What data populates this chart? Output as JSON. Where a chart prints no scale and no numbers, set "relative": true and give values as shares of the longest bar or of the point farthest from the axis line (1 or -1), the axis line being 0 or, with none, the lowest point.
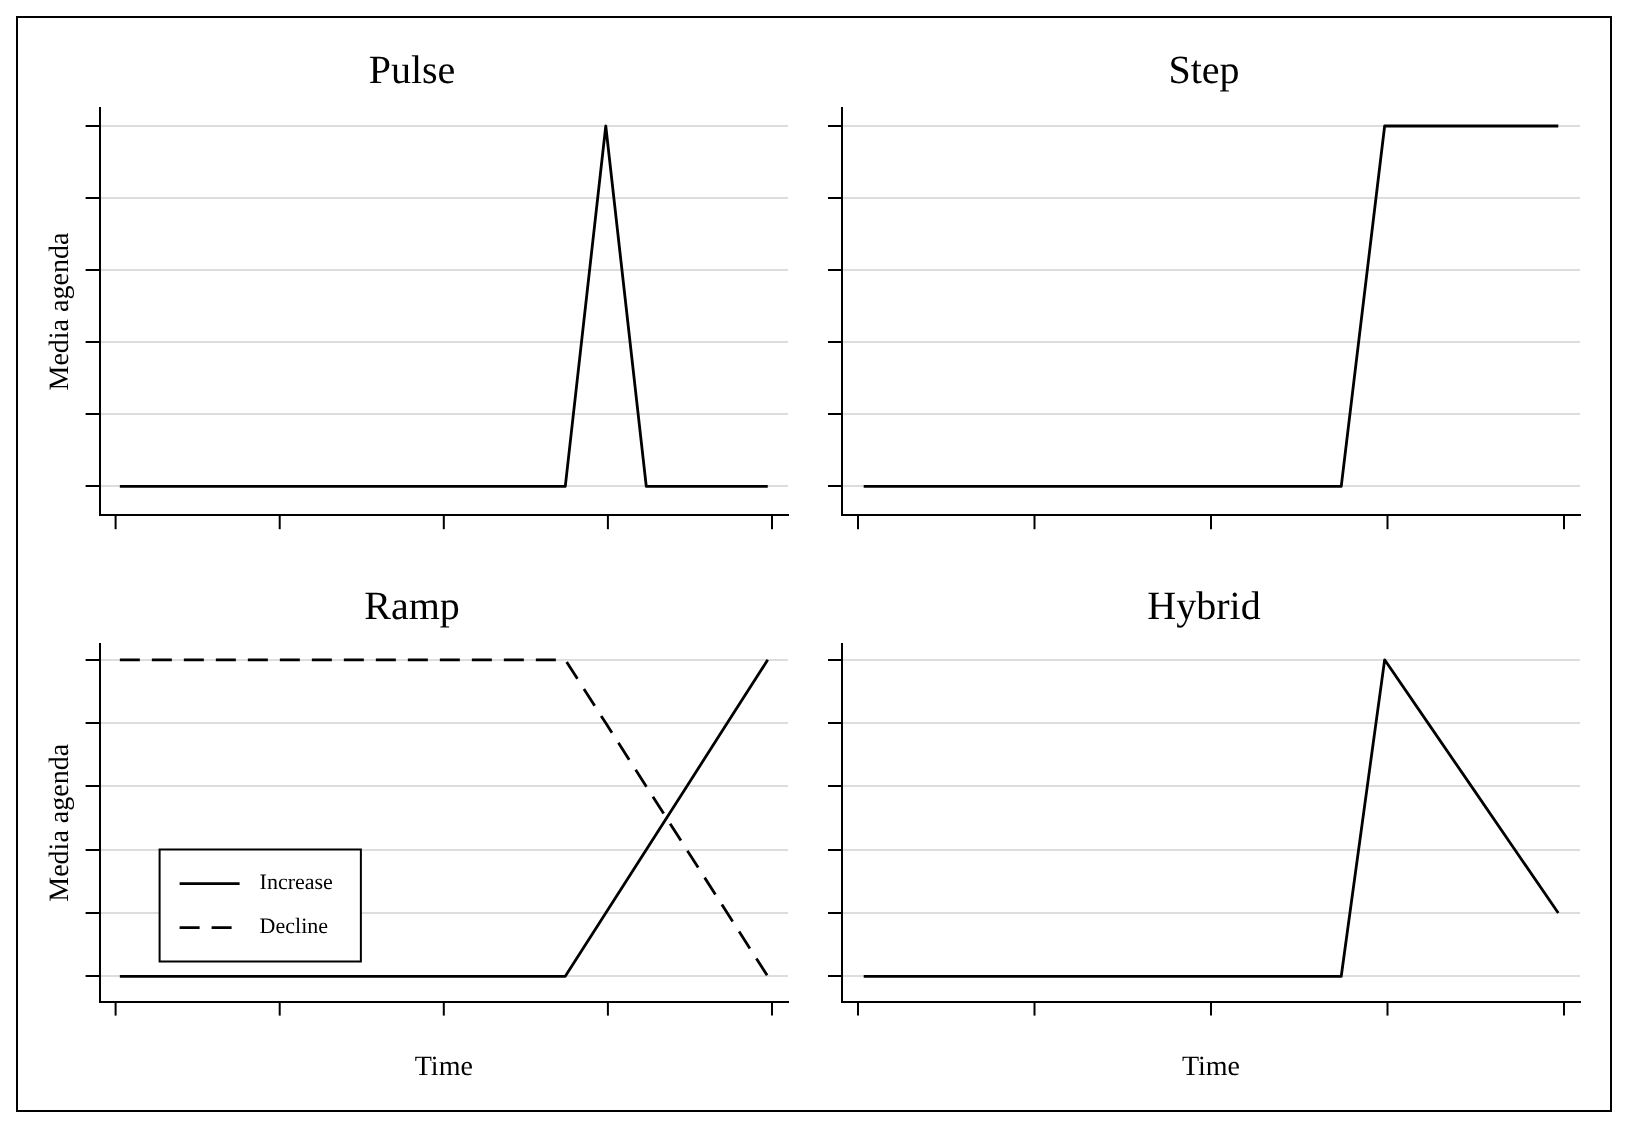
{
  "chart_data": [
    {
      "type": "line",
      "title": "Pulse",
      "ylabel": "Media agenda",
      "relative": true,
      "grid": "y",
      "categories": [
        null,
        null,
        null,
        null,
        null,
        null,
        null,
        null,
        null,
        null,
        null,
        null,
        null,
        null,
        null,
        null,
        null
      ],
      "series": [
        {
          "color": "#000000",
          "line_style": "solid",
          "values": [
            0,
            0,
            0,
            0,
            0,
            0,
            0,
            0,
            0,
            0,
            0,
            0,
            1,
            0,
            0,
            0,
            0
          ]
        }
      ]
    },
    {
      "type": "line",
      "title": "Step",
      "relative": true,
      "grid": "y",
      "categories": [
        null,
        null,
        null,
        null,
        null,
        null,
        null,
        null,
        null,
        null,
        null,
        null,
        null,
        null,
        null,
        null,
        null
      ],
      "series": [
        {
          "color": "#000000",
          "line_style": "solid",
          "values": [
            0,
            0,
            0,
            0,
            0,
            0,
            0,
            0,
            0,
            0,
            0,
            0,
            1,
            1,
            1,
            1,
            1
          ]
        }
      ]
    },
    {
      "type": "line",
      "title": "Ramp",
      "ylabel": "Media agenda",
      "xlabel": "Time",
      "relative": true,
      "grid": "y",
      "legend": "bottom left",
      "categories": [
        null,
        null,
        null,
        null,
        null,
        null,
        null,
        null,
        null,
        null,
        null,
        null,
        null,
        null,
        null,
        null,
        null
      ],
      "series": [
        {
          "name": "Increase",
          "color": "#000000",
          "line_style": "solid",
          "values": [
            0,
            0,
            0,
            0,
            0,
            0,
            0,
            0,
            0,
            0,
            0,
            0,
            0.2,
            0.4,
            0.6,
            0.8,
            1
          ]
        },
        {
          "name": "Decline",
          "color": "#000000",
          "line_style": "dashed",
          "values": [
            1,
            1,
            1,
            1,
            1,
            1,
            1,
            1,
            1,
            1,
            1,
            1,
            0.8,
            0.6,
            0.4,
            0.2,
            0
          ]
        }
      ]
    },
    {
      "type": "line",
      "title": "Hybrid",
      "xlabel": "Time",
      "relative": true,
      "grid": "y",
      "categories": [
        null,
        null,
        null,
        null,
        null,
        null,
        null,
        null,
        null,
        null,
        null,
        null,
        null,
        null,
        null,
        null,
        null
      ],
      "series": [
        {
          "color": "#000000",
          "line_style": "solid",
          "values": [
            0,
            0,
            0,
            0,
            0,
            0,
            0,
            0,
            0,
            0,
            0,
            0,
            1,
            0.8,
            0.6,
            0.4,
            0.2
          ]
        }
      ]
    }
  ]
}
